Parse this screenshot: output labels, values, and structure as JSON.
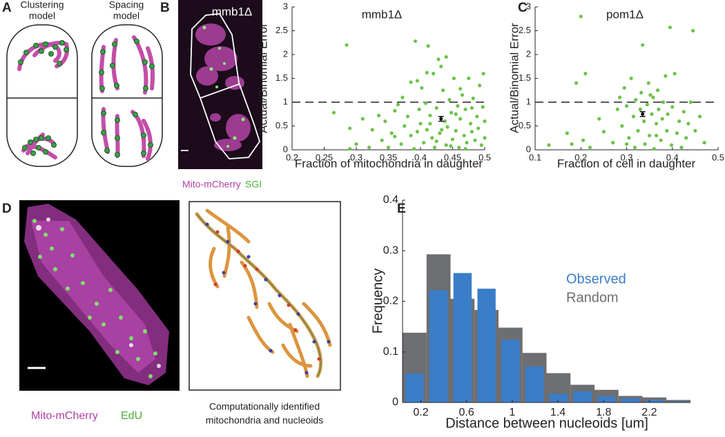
{
  "panel_labels": [
    "A",
    "B",
    "C",
    "D",
    "E"
  ],
  "panel_a": {
    "clustering": [
      "Clustering",
      "model"
    ],
    "spacing": [
      "Spacing",
      "model"
    ]
  },
  "panel_b_image": {
    "strain": "mmb1Δ",
    "stain": [
      "Mito-mCherry",
      "SGI"
    ]
  },
  "panel_d": {
    "stain": [
      "Mito-mCherry",
      "EdU"
    ],
    "caption": [
      "Computationally identified",
      "mitochondria and nucleoids"
    ]
  },
  "chart_data": [
    {
      "type": "scatter",
      "title": "mmb1Δ",
      "xlabel": "Fraction of mitochondria in daughter",
      "ylabel": "Actual/Binomial Error",
      "color": "#6cc24a",
      "x": [
        0.265,
        0.285,
        0.29,
        0.3,
        0.29,
        0.31,
        0.32,
        0.325,
        0.335,
        0.34,
        0.345,
        0.35,
        0.355,
        0.36,
        0.365,
        0.37,
        0.372,
        0.375,
        0.38,
        0.385,
        0.39,
        0.392,
        0.395,
        0.398,
        0.4,
        0.402,
        0.405,
        0.408,
        0.41,
        0.412,
        0.415,
        0.418,
        0.42,
        0.422,
        0.425,
        0.428,
        0.43,
        0.432,
        0.435,
        0.438,
        0.44,
        0.442,
        0.445,
        0.448,
        0.45,
        0.452,
        0.455,
        0.458,
        0.46,
        0.462,
        0.465,
        0.468,
        0.47,
        0.472,
        0.475,
        0.478,
        0.48,
        0.482,
        0.485,
        0.488,
        0.49,
        0.492,
        0.495,
        0.497,
        0.5,
        0.5,
        0.498,
        0.44,
        0.41,
        0.36,
        0.385,
        0.47,
        0.455,
        0.425,
        0.415,
        0.395,
        0.462,
        0.48,
        0.433,
        0.447
      ],
      "values": [
        0.78,
        2.2,
        0.45,
        0.12,
        0.02,
        0.65,
        0.05,
        0.42,
        0.72,
        0.2,
        0.6,
        0.05,
        0.35,
        0.28,
        0.95,
        0.12,
        1.1,
        0.5,
        0.7,
        0.3,
        0.02,
        2.28,
        1.45,
        0.85,
        0.55,
        1.3,
        0.15,
        0.98,
        0.42,
        2.18,
        0.72,
        0.25,
        1.6,
        0.05,
        0.88,
        1.9,
        0.35,
        1.75,
        1.25,
        0.6,
        0.1,
        0.48,
        1.05,
        0.78,
        0.22,
        1.5,
        0.4,
        0.92,
        0.05,
        0.65,
        1.15,
        0.3,
        0.85,
        0.15,
        1.5,
        0.55,
        0.38,
        1.08,
        0.2,
        0.7,
        0.45,
        1.35,
        0.1,
        0.9,
        0.6,
        0.25,
        1.6,
        1.95,
        1.62,
        0.82,
        1.42,
        0.02,
        0.75,
        0.18,
        0.55,
        0.38,
        1.28,
        0.88,
        0.42,
        0.08
      ],
      "mean": {
        "x": 0.432,
        "y": 0.65,
        "error": 0.05
      },
      "reference_line": 1,
      "xlim": [
        0.2,
        0.5
      ],
      "ylim": [
        0,
        3
      ],
      "xticks": [
        0.2,
        0.25,
        0.3,
        0.35,
        0.4,
        0.45,
        0.5
      ],
      "yticks": [
        0,
        0.5,
        1,
        1.5,
        2,
        2.5,
        3
      ]
    },
    {
      "type": "scatter",
      "title": "pom1Δ",
      "xlabel": "Fraction of cell in daughter",
      "ylabel": "Actual/Binomial Error",
      "color": "#6cc24a",
      "x": [
        0.13,
        0.17,
        0.18,
        0.19,
        0.2,
        0.205,
        0.21,
        0.22,
        0.24,
        0.25,
        0.27,
        0.28,
        0.285,
        0.29,
        0.295,
        0.3,
        0.305,
        0.31,
        0.315,
        0.318,
        0.32,
        0.325,
        0.33,
        0.332,
        0.335,
        0.338,
        0.34,
        0.345,
        0.348,
        0.35,
        0.355,
        0.358,
        0.36,
        0.365,
        0.368,
        0.37,
        0.375,
        0.378,
        0.38,
        0.385,
        0.388,
        0.39,
        0.395,
        0.398,
        0.4,
        0.405,
        0.41,
        0.415,
        0.42,
        0.425,
        0.43,
        0.435,
        0.44,
        0.445,
        0.45,
        0.46,
        0.47,
        0.3,
        0.365,
        0.352
      ],
      "values": [
        0.1,
        0.35,
        0.12,
        1.4,
        2.8,
        0.2,
        1.6,
        0.05,
        0.65,
        0.38,
        0.15,
        0.85,
        1.1,
        0.5,
        1.3,
        0.92,
        0.25,
        1.5,
        0.7,
        0.05,
        1.05,
        0.4,
        0.85,
        1.2,
        2.2,
        0.6,
        0.12,
        0.95,
        1.4,
        0.3,
        0.75,
        1.1,
        0.02,
        0.55,
        1.25,
        0.85,
        0.2,
        0.65,
        1.0,
        1.55,
        0.4,
        0.75,
        2.57,
        0.1,
        0.9,
        1.6,
        0.35,
        0.6,
        0.05,
        0.8,
        0.25,
        0.55,
        1.0,
        2.5,
        0.4,
        0.7,
        0.15,
        0.12,
        0.3,
        1.15
      ],
      "mean": {
        "x": 0.335,
        "y": 0.75,
        "error": 0.05
      },
      "reference_line": 1,
      "xlim": [
        0.1,
        0.5
      ],
      "ylim": [
        0,
        3
      ],
      "xticks": [
        0.1,
        0.2,
        0.3,
        0.4,
        0.5
      ],
      "yticks": [
        0,
        0.5,
        1,
        1.5,
        2,
        2.5,
        3
      ]
    },
    {
      "type": "histogram",
      "xlabel": "Distance between nucleoids [um]",
      "ylabel": "Frequency",
      "bins": [
        0.04,
        0.25,
        0.46,
        0.67,
        0.88,
        1.09,
        1.3,
        1.51,
        1.72,
        1.93,
        2.14,
        2.35,
        2.56
      ],
      "series": [
        {
          "name": "Random",
          "color": "#6d6e71",
          "values": [
            0.138,
            0.293,
            0.205,
            0.183,
            0.148,
            0.098,
            0.058,
            0.035,
            0.025,
            0.013,
            0.01,
            0.005
          ]
        },
        {
          "name": "Observed",
          "color": "#3a7dc9",
          "values": [
            0.057,
            0.222,
            0.256,
            0.225,
            0.124,
            0.071,
            0.017,
            0.022,
            0.012,
            0.008,
            0.005,
            0.002
          ]
        }
      ],
      "xlim": [
        0.04,
        2.56
      ],
      "ylim": [
        0,
        0.4
      ],
      "xticks": [
        0.2,
        0.6,
        1,
        1.4,
        1.8,
        2.2
      ],
      "yticks": [
        0,
        0.1,
        0.2,
        0.3,
        0.4
      ]
    }
  ]
}
